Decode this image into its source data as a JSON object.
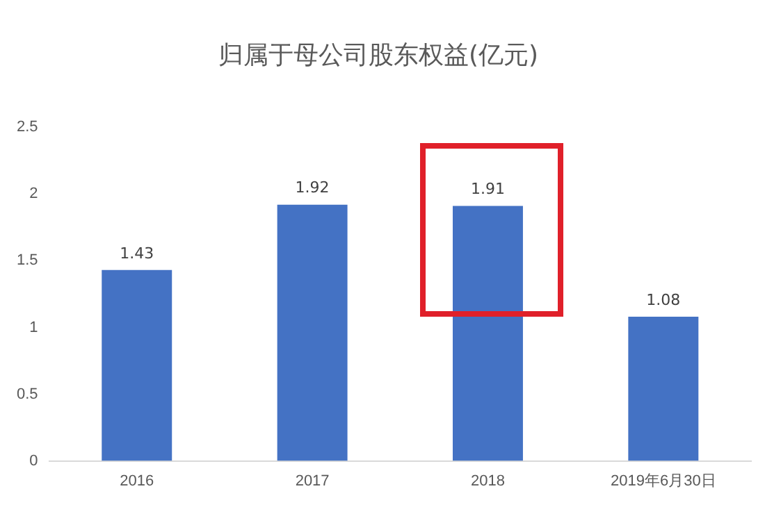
{
  "chart_data": {
    "type": "bar",
    "title": "归属于母公司股东权益(亿元)",
    "categories": [
      "2016",
      "2017",
      "2018",
      "2019年6月30日"
    ],
    "values": [
      1.43,
      1.92,
      1.91,
      1.08
    ],
    "color": "#4472c4",
    "ylim": [
      0,
      2.5
    ],
    "yticks": [
      0,
      0.5,
      1,
      1.5,
      2,
      2.5
    ],
    "grid": false,
    "data_labels": true
  }
}
